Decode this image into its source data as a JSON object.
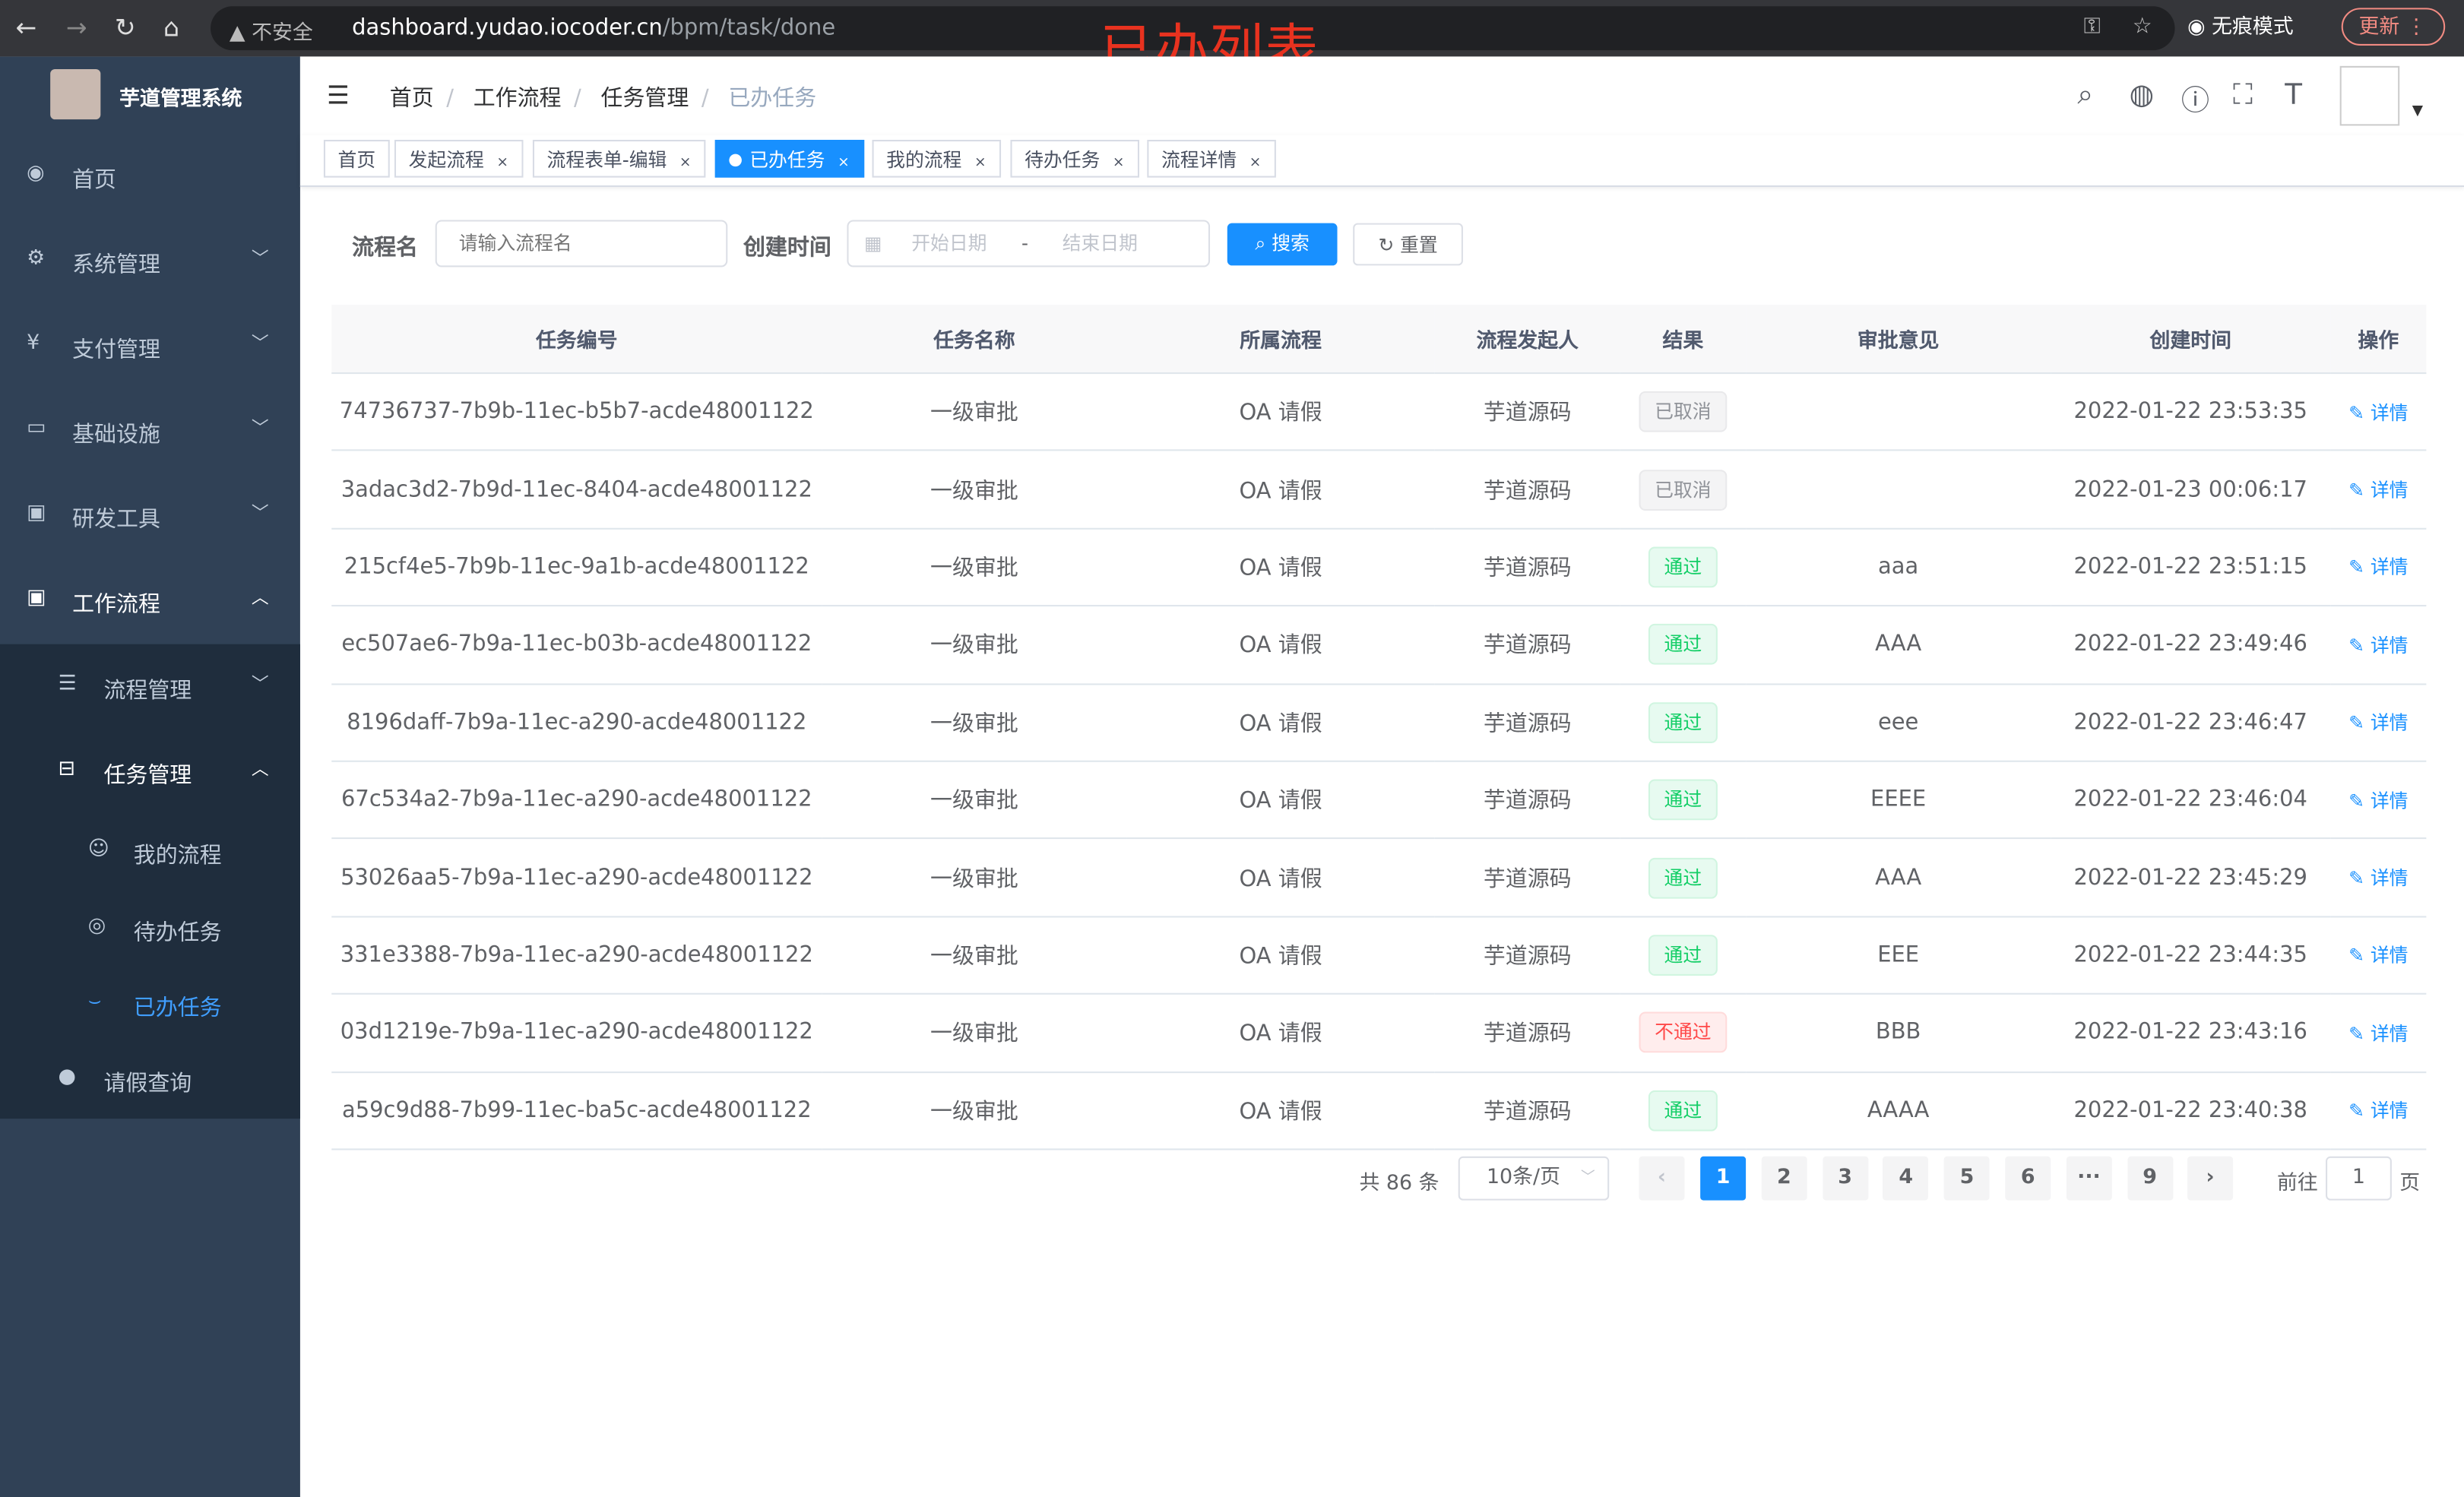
{
  "browser": {
    "security": "不安全",
    "url_host": "dashboard.yudao.iocoder.cn",
    "url_path": "/bpm/task/done",
    "incognito": "无痕模式",
    "update": "更新"
  },
  "overlay_title": "已办列表",
  "sidebar": {
    "brand": "芋道管理系统",
    "items": [
      {
        "label": "首页",
        "icon": "dashboard-icon"
      },
      {
        "label": "系统管理",
        "icon": "gear-icon"
      },
      {
        "label": "支付管理",
        "icon": "yen-icon"
      },
      {
        "label": "基础设施",
        "icon": "monitor-icon"
      },
      {
        "label": "研发工具",
        "icon": "toolbox-icon"
      },
      {
        "label": "工作流程",
        "icon": "toolbox-icon"
      },
      {
        "label": "流程管理",
        "icon": "list-icon"
      },
      {
        "label": "任务管理",
        "icon": "tree-icon"
      },
      {
        "label": "我的流程",
        "icon": "people-icon"
      },
      {
        "label": "待办任务",
        "icon": "eye-icon"
      },
      {
        "label": "已办任务",
        "icon": "eye-closed-icon"
      },
      {
        "label": "请假查询",
        "icon": "user-icon"
      }
    ]
  },
  "breadcrumb": [
    "首页",
    "工作流程",
    "任务管理",
    "已办任务"
  ],
  "tags": [
    "首页",
    "发起流程",
    "流程表单-编辑",
    "已办任务",
    "我的流程",
    "待办任务",
    "流程详情"
  ],
  "active_tag": "已办任务",
  "search": {
    "name_label": "流程名",
    "name_placeholder": "请输入流程名",
    "time_label": "创建时间",
    "start_placeholder": "开始日期",
    "sep": "-",
    "end_placeholder": "结束日期",
    "search_btn": "搜索",
    "reset_btn": "重置"
  },
  "table": {
    "columns": [
      "任务编号",
      "任务名称",
      "所属流程",
      "流程发起人",
      "结果",
      "审批意见",
      "创建时间",
      "操作"
    ],
    "action": "详情",
    "rows": [
      [
        "74736737-7b9b-11ec-b5b7-acde48001122",
        "一级审批",
        "OA 请假",
        "芋道源码",
        "已取消",
        "",
        "2022-01-22 23:53:35"
      ],
      [
        "3adac3d2-7b9d-11ec-8404-acde48001122",
        "一级审批",
        "OA 请假",
        "芋道源码",
        "已取消",
        "",
        "2022-01-23 00:06:17"
      ],
      [
        "215cf4e5-7b9b-11ec-9a1b-acde48001122",
        "一级审批",
        "OA 请假",
        "芋道源码",
        "通过",
        "aaa",
        "2022-01-22 23:51:15"
      ],
      [
        "ec507ae6-7b9a-11ec-b03b-acde48001122",
        "一级审批",
        "OA 请假",
        "芋道源码",
        "通过",
        "AAA",
        "2022-01-22 23:49:46"
      ],
      [
        "8196daff-7b9a-11ec-a290-acde48001122",
        "一级审批",
        "OA 请假",
        "芋道源码",
        "通过",
        "eee",
        "2022-01-22 23:46:47"
      ],
      [
        "67c534a2-7b9a-11ec-a290-acde48001122",
        "一级审批",
        "OA 请假",
        "芋道源码",
        "通过",
        "EEEE",
        "2022-01-22 23:46:04"
      ],
      [
        "53026aa5-7b9a-11ec-a290-acde48001122",
        "一级审批",
        "OA 请假",
        "芋道源码",
        "通过",
        "AAA",
        "2022-01-22 23:45:29"
      ],
      [
        "331e3388-7b9a-11ec-a290-acde48001122",
        "一级审批",
        "OA 请假",
        "芋道源码",
        "通过",
        "EEE",
        "2022-01-22 23:44:35"
      ],
      [
        "03d1219e-7b9a-11ec-a290-acde48001122",
        "一级审批",
        "OA 请假",
        "芋道源码",
        "不通过",
        "BBB",
        "2022-01-22 23:43:16"
      ],
      [
        "a59c9d88-7b99-11ec-ba5c-acde48001122",
        "一级审批",
        "OA 请假",
        "芋道源码",
        "通过",
        "AAAA",
        "2022-01-22 23:40:38"
      ]
    ]
  },
  "pagination": {
    "total": "共 86 条",
    "page_size": "10条/页",
    "pages": [
      "1",
      "2",
      "3",
      "4",
      "5",
      "6",
      "···",
      "9"
    ],
    "current": "1",
    "goto_label": "前往",
    "goto_value": "1",
    "page_unit": "页"
  },
  "colors": {
    "sidebar": "#304156",
    "submenu": "#1f2d3d",
    "primary": "#1890ff",
    "overlay": "#e8321f"
  }
}
